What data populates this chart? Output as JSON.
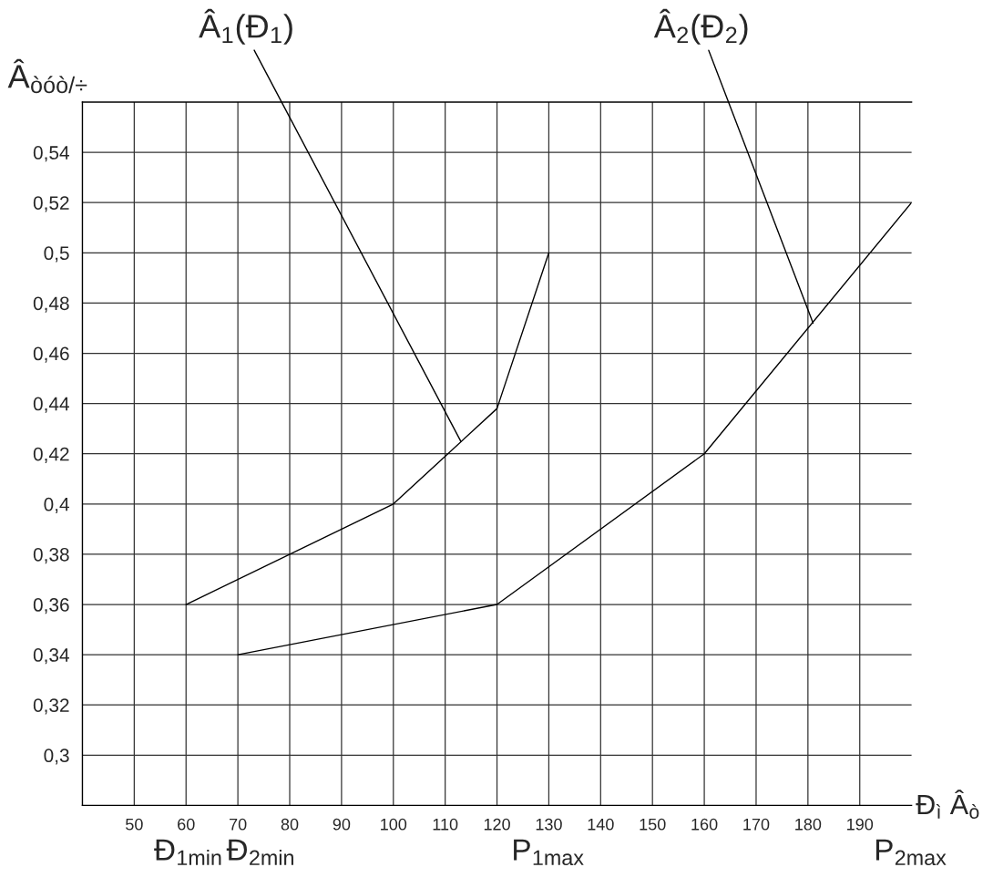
{
  "chart_data": {
    "type": "line",
    "xlabel": "Ð$_{ì}$ Â$_{ò}$",
    "ylabel": "Â$_{òóò/÷}$",
    "series": [
      {
        "color": "#000000",
        "x": [
          60,
          100,
          120,
          130
        ],
        "values": [
          0.36,
          0.4,
          0.438,
          0.5
        ]
      },
      {
        "color": "#000000",
        "x": [
          70,
          120,
          160,
          200
        ],
        "values": [
          0.34,
          0.36,
          0.42,
          0.52
        ]
      }
    ],
    "xlim": [
      40,
      200
    ],
    "xticks": [
      50,
      60,
      70,
      80,
      90,
      100,
      110,
      120,
      130,
      140,
      150,
      160,
      170,
      180,
      190
    ],
    "ylim": [
      0.28,
      0.56
    ],
    "yticks": [
      {
        "value": 0.3,
        "label": "0,3"
      },
      {
        "value": 0.32,
        "label": "0,32"
      },
      {
        "value": 0.34,
        "label": "0,34"
      },
      {
        "value": 0.36,
        "label": "0,36"
      },
      {
        "value": 0.38,
        "label": "0,38"
      },
      {
        "value": 0.4,
        "label": "0,4"
      },
      {
        "value": 0.42,
        "label": "0,42"
      },
      {
        "value": 0.44,
        "label": "0,44"
      },
      {
        "value": 0.46,
        "label": "0,46"
      },
      {
        "value": 0.48,
        "label": "0,48"
      },
      {
        "value": 0.5,
        "label": "0,5"
      },
      {
        "value": 0.52,
        "label": "0,52"
      },
      {
        "value": 0.54,
        "label": "0,54"
      }
    ],
    "grid": true,
    "marker": "none",
    "line_style": "solid",
    "annotations": [
      {
        "text": "Â$_{1}$(Ð$_{1}$)",
        "x": 113,
        "y": 0.425
      },
      {
        "text": "Â$_{2}$(Ð$_{2}$)",
        "x": 181,
        "y": 0.472
      },
      "Ð$_{1min}$",
      "Ð$_{2min}$",
      "P$_{1max}$",
      "P$_{2max}$"
    ]
  }
}
